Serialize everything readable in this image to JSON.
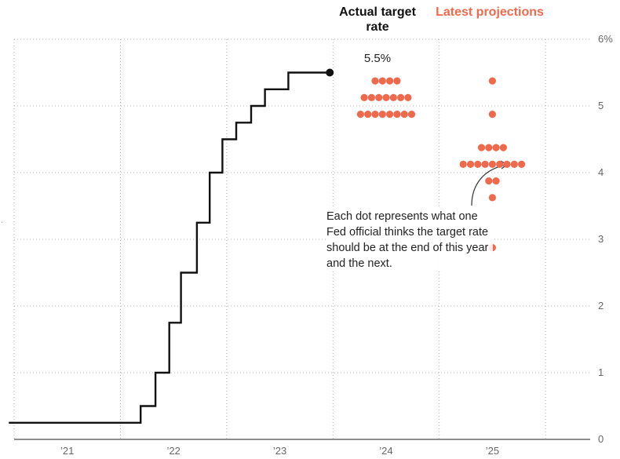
{
  "chart_data": {
    "type": "line",
    "headers": {
      "actual": "Actual target rate",
      "projections": "Latest projections"
    },
    "x_tick_labels": [
      "’21",
      "’22",
      "’23",
      "’24",
      "’25"
    ],
    "y_ticks": [
      0,
      1,
      2,
      3,
      4,
      5,
      6
    ],
    "y_tick_labels": [
      "0",
      "1",
      "2",
      "3",
      "4",
      "5",
      "6%"
    ],
    "ylim": [
      0,
      6
    ],
    "xlim": [
      2021.0,
      2026.42
    ],
    "last_value_label": "5.5%",
    "annotation": "Each dot represents what one Fed official thinks the target rate should be at the end of this year and the next.",
    "series": [
      {
        "values": [
          [
            2020.95,
            0.25
          ],
          [
            2022.19,
            0.25
          ],
          [
            2022.19,
            0.5
          ],
          [
            2022.33,
            0.5
          ],
          [
            2022.33,
            1.0
          ],
          [
            2022.46,
            1.0
          ],
          [
            2022.46,
            1.75
          ],
          [
            2022.57,
            1.75
          ],
          [
            2022.57,
            2.5
          ],
          [
            2022.72,
            2.5
          ],
          [
            2022.72,
            3.25
          ],
          [
            2022.84,
            3.25
          ],
          [
            2022.84,
            4.0
          ],
          [
            2022.96,
            4.0
          ],
          [
            2022.96,
            4.5
          ],
          [
            2023.09,
            4.5
          ],
          [
            2023.09,
            4.75
          ],
          [
            2023.23,
            4.75
          ],
          [
            2023.23,
            5.0
          ],
          [
            2023.36,
            5.0
          ],
          [
            2023.36,
            5.25
          ],
          [
            2023.58,
            5.25
          ],
          [
            2023.58,
            5.5
          ],
          [
            2023.97,
            5.5
          ]
        ]
      }
    ],
    "projections": [
      {
        "year": 2024.5,
        "rate_counts": [
          [
            5.375,
            4
          ],
          [
            5.125,
            7
          ],
          [
            4.875,
            8
          ]
        ]
      },
      {
        "year": 2025.5,
        "rate_counts": [
          [
            5.375,
            1
          ],
          [
            4.875,
            1
          ],
          [
            4.375,
            4
          ],
          [
            4.125,
            9
          ],
          [
            3.875,
            2
          ],
          [
            3.625,
            1
          ],
          [
            2.875,
            1
          ]
        ]
      }
    ],
    "colors": {
      "actual": "#111111",
      "projections": "#ef6a4c",
      "grid": "#b5b5b5"
    },
    "grid": true
  }
}
